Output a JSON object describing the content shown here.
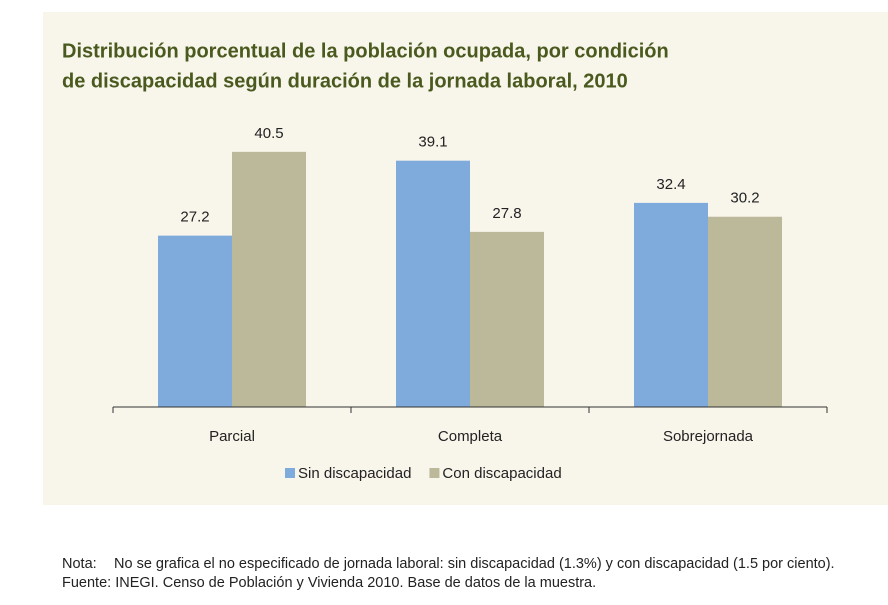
{
  "chart_data": {
    "type": "bar",
    "title": [
      "Distribución porcentual de la población ocupada, por condición",
      "de discapacidad según duración de la jornada laboral, 2010"
    ],
    "categories": [
      "Parcial",
      "Completa",
      "Sobrejornada"
    ],
    "series": [
      {
        "name": "Sin discapacidad",
        "color": "#7faadc",
        "values": [
          27.2,
          39.1,
          32.4
        ]
      },
      {
        "name": "Con discapacidad",
        "color": "#bcb99a",
        "values": [
          40.5,
          27.8,
          30.2
        ]
      }
    ],
    "ylim": [
      0,
      45
    ],
    "note_label": "Nota:",
    "note": "No se grafica el no especificado de jornada laboral: sin discapacidad (1.3%) y con discapacidad (1.5 por ciento).",
    "source": "Fuente: INEGI. Censo de Población y Vivienda 2010. Base de datos de la muestra."
  }
}
